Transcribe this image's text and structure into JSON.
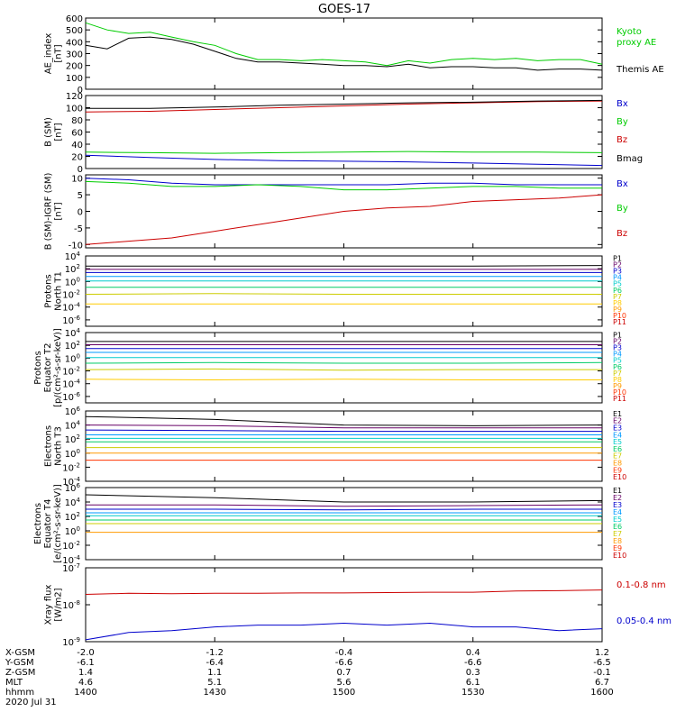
{
  "title": "GOES-17",
  "colors": {
    "black": "#000000",
    "green": "#00cc00",
    "blue": "#0000cc",
    "red": "#cc0000",
    "P1": "#000000",
    "P2": "#660066",
    "P3": "#0000cc",
    "P4": "#0099ff",
    "P5": "#00cccc",
    "P6": "#00cc66",
    "P7": "#cccc00",
    "P8": "#ffcc00",
    "P9": "#ff9900",
    "P10": "#ff3300",
    "P11": "#cc0000",
    "E1": "#000000",
    "E2": "#660066",
    "E3": "#0000cc",
    "E4": "#0099ff",
    "E5": "#00cccc",
    "E6": "#00cc66",
    "E7": "#cccc00",
    "E8": "#ff9900",
    "E9": "#ff3300",
    "E10": "#cc0000"
  },
  "chart_data": [
    {
      "id": "ae",
      "type": "line",
      "ylabel": [
        "AE_index",
        "[nT]"
      ],
      "ylim": [
        0,
        600
      ],
      "yticks": [
        "0",
        "100",
        "200",
        "300",
        "400",
        "500",
        "600"
      ],
      "ytick_values": [
        0,
        100,
        200,
        300,
        400,
        500,
        600
      ],
      "x": [
        1400,
        1405,
        1410,
        1415,
        1420,
        1425,
        1430,
        1435,
        1440,
        1445,
        1450,
        1455,
        1500,
        1505,
        1510,
        1515,
        1520,
        1525,
        1530,
        1535,
        1540,
        1545,
        1550,
        1555,
        1600
      ],
      "series": [
        {
          "name": "Kyoto proxy AE",
          "color": "green",
          "values": [
            560,
            500,
            470,
            480,
            440,
            400,
            370,
            300,
            250,
            250,
            240,
            250,
            240,
            230,
            200,
            240,
            220,
            250,
            260,
            250,
            260,
            240,
            250,
            250,
            210
          ]
        },
        {
          "name": "Themis AE",
          "color": "black",
          "values": [
            370,
            340,
            430,
            440,
            420,
            380,
            320,
            260,
            230,
            230,
            220,
            210,
            200,
            200,
            190,
            210,
            180,
            190,
            190,
            180,
            180,
            160,
            170,
            170,
            160
          ]
        }
      ],
      "legend": [
        {
          "text": "Kyoto",
          "color": "green"
        },
        {
          "text": "proxy AE",
          "color": "green"
        },
        {
          "text": "Themis AE",
          "color": "black"
        }
      ]
    },
    {
      "id": "bsm",
      "type": "line",
      "ylabel": [
        "B (SM)",
        "[nT]"
      ],
      "ylim": [
        0,
        120
      ],
      "yticks": [
        "0",
        "20",
        "40",
        "60",
        "80",
        "100",
        "120"
      ],
      "ytick_values": [
        0,
        20,
        40,
        60,
        80,
        100,
        120
      ],
      "x": [
        1400,
        1415,
        1430,
        1445,
        1500,
        1515,
        1530,
        1545,
        1600
      ],
      "series": [
        {
          "name": "Bx",
          "color": "blue",
          "values": [
            22,
            18,
            15,
            13,
            12,
            11,
            9,
            7,
            5
          ]
        },
        {
          "name": "By",
          "color": "green",
          "values": [
            27,
            26,
            25,
            26,
            27,
            28,
            27,
            27,
            26
          ]
        },
        {
          "name": "Bz",
          "color": "red",
          "values": [
            93,
            94,
            97,
            100,
            103,
            106,
            108,
            110,
            111
          ]
        },
        {
          "name": "Bmag",
          "color": "black",
          "values": [
            99,
            99,
            101,
            104,
            106,
            108,
            109,
            111,
            112
          ]
        }
      ],
      "legend": [
        {
          "text": "Bx",
          "color": "blue"
        },
        {
          "text": "By",
          "color": "green"
        },
        {
          "text": "Bz",
          "color": "red"
        },
        {
          "text": "Bmag",
          "color": "black"
        }
      ]
    },
    {
      "id": "bigrf",
      "type": "line",
      "ylabel": [
        "B (SM)-IGRF (SM)",
        "[nT]"
      ],
      "ylim": [
        -11,
        11
      ],
      "yticks": [
        "-10",
        "-5",
        "0",
        "5",
        "10"
      ],
      "ytick_values": [
        -10,
        -5,
        0,
        5,
        10
      ],
      "x": [
        1400,
        1410,
        1420,
        1430,
        1440,
        1450,
        1500,
        1510,
        1520,
        1530,
        1540,
        1550,
        1600
      ],
      "series": [
        {
          "name": "Bx",
          "color": "blue",
          "values": [
            10,
            9.5,
            8.5,
            8,
            8,
            8,
            8,
            8,
            8.5,
            8.5,
            8,
            8,
            8
          ]
        },
        {
          "name": "By",
          "color": "green",
          "values": [
            9,
            8.5,
            7.5,
            7.5,
            8,
            7.5,
            6.5,
            6.5,
            7,
            7.5,
            7.5,
            7,
            7
          ]
        },
        {
          "name": "Bz",
          "color": "red",
          "values": [
            -10,
            -9,
            -8,
            -6,
            -4,
            -2,
            0,
            1,
            1.5,
            3,
            3.5,
            4,
            5
          ]
        }
      ],
      "legend": [
        {
          "text": "Bx",
          "color": "blue"
        },
        {
          "text": "By",
          "color": "green"
        },
        {
          "text": "Bz",
          "color": "red"
        }
      ]
    },
    {
      "id": "pn",
      "type": "line",
      "log": true,
      "ylabel": [
        "Protons",
        "North T1"
      ],
      "ylim_exp": [
        -7,
        4
      ],
      "yticks_exp": [
        -6,
        -4,
        -2,
        0,
        2,
        4
      ],
      "ytick_base": "10",
      "ytick_sups": [
        "-6",
        "-4",
        "-2",
        "0",
        "2",
        "4"
      ],
      "x": [
        1400,
        1430,
        1500,
        1530,
        1600
      ],
      "series": [
        {
          "name": "P1",
          "color": "P1",
          "values_exp": [
            2.4,
            2.4,
            2.4,
            2.4,
            2.5
          ]
        },
        {
          "name": "P2",
          "color": "P2",
          "values_exp": [
            1.9,
            1.9,
            1.9,
            1.9,
            1.9
          ]
        },
        {
          "name": "P3",
          "color": "P3",
          "values_exp": [
            1.4,
            1.4,
            1.4,
            1.4,
            1.4
          ]
        },
        {
          "name": "P4",
          "color": "P4",
          "values_exp": [
            0.8,
            0.8,
            0.8,
            0.8,
            0.8
          ]
        },
        {
          "name": "P5",
          "color": "P5",
          "values_exp": [
            0.1,
            0.1,
            0.1,
            0.1,
            0.1
          ]
        },
        {
          "name": "P6",
          "color": "P6",
          "values_exp": [
            -0.9,
            -0.9,
            -0.9,
            -0.9,
            -0.9
          ]
        },
        {
          "name": "P7",
          "color": "P7",
          "values_exp": [
            -2,
            -1.9,
            -2,
            -2,
            -2
          ]
        },
        {
          "name": "P8",
          "color": "P8",
          "values_exp": [
            -3.5,
            -3.5,
            -3.5,
            -3.5,
            -3.5
          ]
        }
      ],
      "legend": [
        "P1",
        "P2",
        "P3",
        "P4",
        "P5",
        "P6",
        "P7",
        "P8",
        "P9",
        "P10",
        "P11"
      ]
    },
    {
      "id": "pe",
      "type": "line",
      "log": true,
      "ylabel": [
        "Protons",
        "Equator T2",
        "[p/(cm²-s-sr-keV)]"
      ],
      "ylim_exp": [
        -7,
        4
      ],
      "yticks_exp": [
        -6,
        -4,
        -2,
        0,
        2,
        4
      ],
      "ytick_base": "10",
      "ytick_sups": [
        "-6",
        "-4",
        "-2",
        "0",
        "2",
        "4"
      ],
      "x": [
        1400,
        1430,
        1500,
        1530,
        1600
      ],
      "series": [
        {
          "name": "P1",
          "color": "P1",
          "values_exp": [
            2.6,
            2.6,
            2.6,
            2.6,
            2.6
          ]
        },
        {
          "name": "P2",
          "color": "P2",
          "values_exp": [
            2.1,
            2.1,
            2.1,
            2.1,
            2.1
          ]
        },
        {
          "name": "P3",
          "color": "P3",
          "values_exp": [
            1.5,
            1.5,
            1.5,
            1.5,
            1.5
          ]
        },
        {
          "name": "P4",
          "color": "P4",
          "values_exp": [
            0.9,
            0.9,
            0.9,
            0.9,
            0.9
          ]
        },
        {
          "name": "P5",
          "color": "P5",
          "values_exp": [
            0.1,
            0.1,
            0.1,
            0.1,
            0.1
          ]
        },
        {
          "name": "P6",
          "color": "P6",
          "values_exp": [
            -0.8,
            -0.7,
            -0.8,
            -0.8,
            -0.7
          ]
        },
        {
          "name": "P7",
          "color": "P7",
          "values_exp": [
            -1.8,
            -1.7,
            -1.9,
            -1.8,
            -1.8
          ]
        },
        {
          "name": "P8",
          "color": "P8",
          "values_exp": [
            -3.3,
            -3.4,
            -3.3,
            -3.4,
            -3.4
          ]
        }
      ],
      "legend": [
        "P1",
        "P2",
        "P3",
        "P4",
        "P5",
        "P6",
        "P7",
        "P8",
        "P9",
        "P10",
        "P11"
      ]
    },
    {
      "id": "en",
      "type": "line",
      "log": true,
      "ylabel": [
        "Electrons",
        "North T3"
      ],
      "ylim_exp": [
        -4,
        6
      ],
      "yticks_exp": [
        -4,
        -2,
        0,
        2,
        4,
        6
      ],
      "ytick_base": "10",
      "ytick_sups": [
        "-4",
        "-2",
        "0",
        "2",
        "4",
        "6"
      ],
      "x": [
        1400,
        1430,
        1500,
        1530,
        1600
      ],
      "series": [
        {
          "name": "E1",
          "color": "E1",
          "values_exp": [
            5.2,
            4.8,
            4,
            3.9,
            4
          ]
        },
        {
          "name": "E2",
          "color": "E2",
          "values_exp": [
            4,
            3.9,
            3.6,
            3.6,
            3.6
          ]
        },
        {
          "name": "E3",
          "color": "E3",
          "values_exp": [
            3.3,
            3.2,
            3.1,
            3.1,
            3.1
          ]
        },
        {
          "name": "E4",
          "color": "E4",
          "values_exp": [
            2.6,
            2.6,
            2.6,
            2.6,
            2.6
          ]
        },
        {
          "name": "E5",
          "color": "E5",
          "values_exp": [
            2.1,
            2.1,
            2.1,
            2.1,
            2.1
          ]
        },
        {
          "name": "E6",
          "color": "E6",
          "values_exp": [
            1.6,
            1.6,
            1.6,
            1.6,
            1.6
          ]
        },
        {
          "name": "E7",
          "color": "E7",
          "values_exp": [
            0.8,
            0.8,
            0.8,
            0.8,
            0.8
          ]
        },
        {
          "name": "E8",
          "color": "E8",
          "values_exp": [
            0,
            0,
            0,
            0,
            0
          ]
        },
        {
          "name": "E9",
          "color": "E9",
          "values_exp": [
            -1,
            -1,
            -1,
            -1,
            -1
          ]
        }
      ],
      "legend": [
        "E1",
        "E2",
        "E3",
        "E4",
        "E5",
        "E6",
        "E7",
        "E8",
        "E9",
        "E10"
      ]
    },
    {
      "id": "ee",
      "type": "line",
      "log": true,
      "ylabel": [
        "Electrons",
        "Equator T4",
        "[e/(cm²-s-sr-keV)]"
      ],
      "ylim_exp": [
        -4,
        6
      ],
      "yticks_exp": [
        -4,
        -2,
        0,
        2,
        4,
        6
      ],
      "ytick_base": "10",
      "ytick_sups": [
        "-4",
        "-2",
        "0",
        "2",
        "4",
        "6"
      ],
      "x": [
        1400,
        1430,
        1500,
        1530,
        1600
      ],
      "series": [
        {
          "name": "E1",
          "color": "E1",
          "values_exp": [
            5,
            4.6,
            4,
            4,
            4.2
          ]
        },
        {
          "name": "E2",
          "color": "E2",
          "values_exp": [
            3.6,
            3.6,
            3.4,
            3.5,
            3.6
          ]
        },
        {
          "name": "E3",
          "color": "E3",
          "values_exp": [
            3,
            3,
            2.9,
            3,
            3
          ]
        },
        {
          "name": "E4",
          "color": "E4",
          "values_exp": [
            2.5,
            2.5,
            2.5,
            2.5,
            2.5
          ]
        },
        {
          "name": "E5",
          "color": "E5",
          "values_exp": [
            2.1,
            2.1,
            2.1,
            2.1,
            2.1
          ]
        },
        {
          "name": "E6",
          "color": "E6",
          "values_exp": [
            1.5,
            1.5,
            1.5,
            1.5,
            1.5
          ]
        },
        {
          "name": "E7",
          "color": "E7",
          "values_exp": [
            1,
            1,
            1,
            1,
            1
          ]
        },
        {
          "name": "E8",
          "color": "E8",
          "values_exp": [
            -0.2,
            -0.2,
            -0.2,
            -0.2,
            -0.2
          ]
        }
      ],
      "legend": [
        "E1",
        "E2",
        "E3",
        "E4",
        "E5",
        "E6",
        "E7",
        "E8",
        "E9",
        "E10"
      ]
    },
    {
      "id": "xray",
      "type": "line",
      "log": true,
      "ylabel": [
        "Xray flux",
        "[W/m2]"
      ],
      "ylim_exp": [
        -9,
        -7
      ],
      "yticks_exp": [
        -9,
        -8,
        -7
      ],
      "ytick_base": "10",
      "ytick_sups": [
        "-9",
        "-8",
        "-7"
      ],
      "x": [
        1400,
        1410,
        1420,
        1430,
        1440,
        1450,
        1500,
        1510,
        1520,
        1530,
        1540,
        1550,
        1600
      ],
      "series": [
        {
          "name": "0.1-0.8 nm",
          "color": "red",
          "values_exp": [
            -7.72,
            -7.69,
            -7.7,
            -7.69,
            -7.69,
            -7.68,
            -7.68,
            -7.67,
            -7.66,
            -7.66,
            -7.63,
            -7.62,
            -7.6
          ]
        },
        {
          "name": "0.05-0.4 nm",
          "color": "blue",
          "values_exp": [
            -8.95,
            -8.75,
            -8.7,
            -8.6,
            -8.55,
            -8.55,
            -8.5,
            -8.55,
            -8.5,
            -8.6,
            -8.6,
            -8.7,
            -8.65
          ]
        }
      ],
      "legend": [
        {
          "text": "0.1-0.8 nm",
          "color": "red"
        },
        {
          "text": "0.05-0.4 nm",
          "color": "blue"
        }
      ]
    }
  ],
  "x_axis": {
    "range": [
      1400,
      1600
    ],
    "tick_positions": [
      1400,
      1430,
      1500,
      1530,
      1600
    ],
    "rows": [
      {
        "label": "X-GSM",
        "values": [
          "-2.0",
          "-1.2",
          "-0.4",
          "0.4",
          "1.2"
        ]
      },
      {
        "label": "Y-GSM",
        "values": [
          "-6.1",
          "-6.4",
          "-6.6",
          "-6.6",
          "-6.5"
        ]
      },
      {
        "label": "Z-GSM",
        "values": [
          "1.4",
          "1.1",
          "0.7",
          "0.3",
          "-0.1"
        ]
      },
      {
        "label": "MLT",
        "values": [
          "4.6",
          "5.1",
          "5.6",
          "6.1",
          "6.7"
        ]
      },
      {
        "label": "hhmm",
        "values": [
          "1400",
          "1430",
          "1500",
          "1530",
          "1600"
        ]
      }
    ],
    "date": "2020 Jul 31"
  }
}
